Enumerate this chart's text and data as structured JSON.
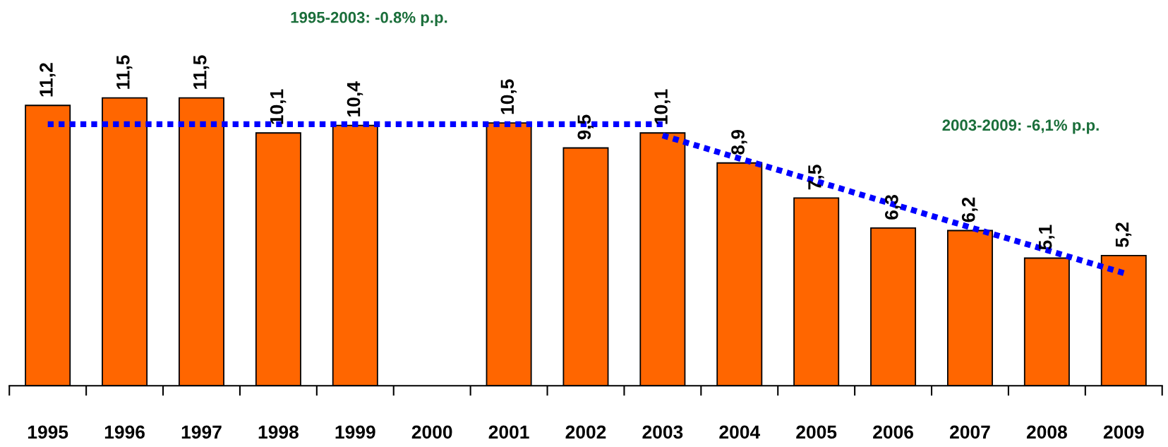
{
  "chart_data": {
    "type": "bar",
    "categories": [
      "1995",
      "1996",
      "1997",
      "1998",
      "1999",
      "2000",
      "2001",
      "2002",
      "2003",
      "2004",
      "2005",
      "2006",
      "2007",
      "2008",
      "2009"
    ],
    "values": [
      11.2,
      11.5,
      11.5,
      10.1,
      10.4,
      null,
      10.5,
      9.5,
      10.1,
      8.9,
      7.5,
      6.3,
      6.2,
      5.1,
      5.2
    ],
    "value_labels": [
      "11,2",
      "11,5",
      "11,5",
      "10,1",
      "10,4",
      null,
      "10,5",
      "9,5",
      "10,1",
      "8,9",
      "7,5",
      "6,3",
      "6,2",
      "5,1",
      "5,2"
    ],
    "color": "#ff6600",
    "tick_labels": "x",
    "grid": false,
    "legend": false,
    "series": [
      {
        "type": "line",
        "values": [
          10.45,
          10.45,
          10.45,
          10.45,
          10.45,
          10.45,
          10.45,
          10.45,
          10.45,
          null,
          null,
          null,
          null,
          null,
          null
        ],
        "color": "#0000ff",
        "line_style": "dotted"
      },
      {
        "type": "line",
        "values": [
          null,
          null,
          null,
          null,
          null,
          null,
          null,
          null,
          10.0,
          9.08,
          8.17,
          7.25,
          6.33,
          5.42,
          4.5
        ],
        "color": "#0000ff",
        "line_style": "dotted"
      }
    ],
    "annotations": [
      "1995-2003: -0.8% p.p.",
      "2003-2009: -6,1% p.p."
    ]
  }
}
